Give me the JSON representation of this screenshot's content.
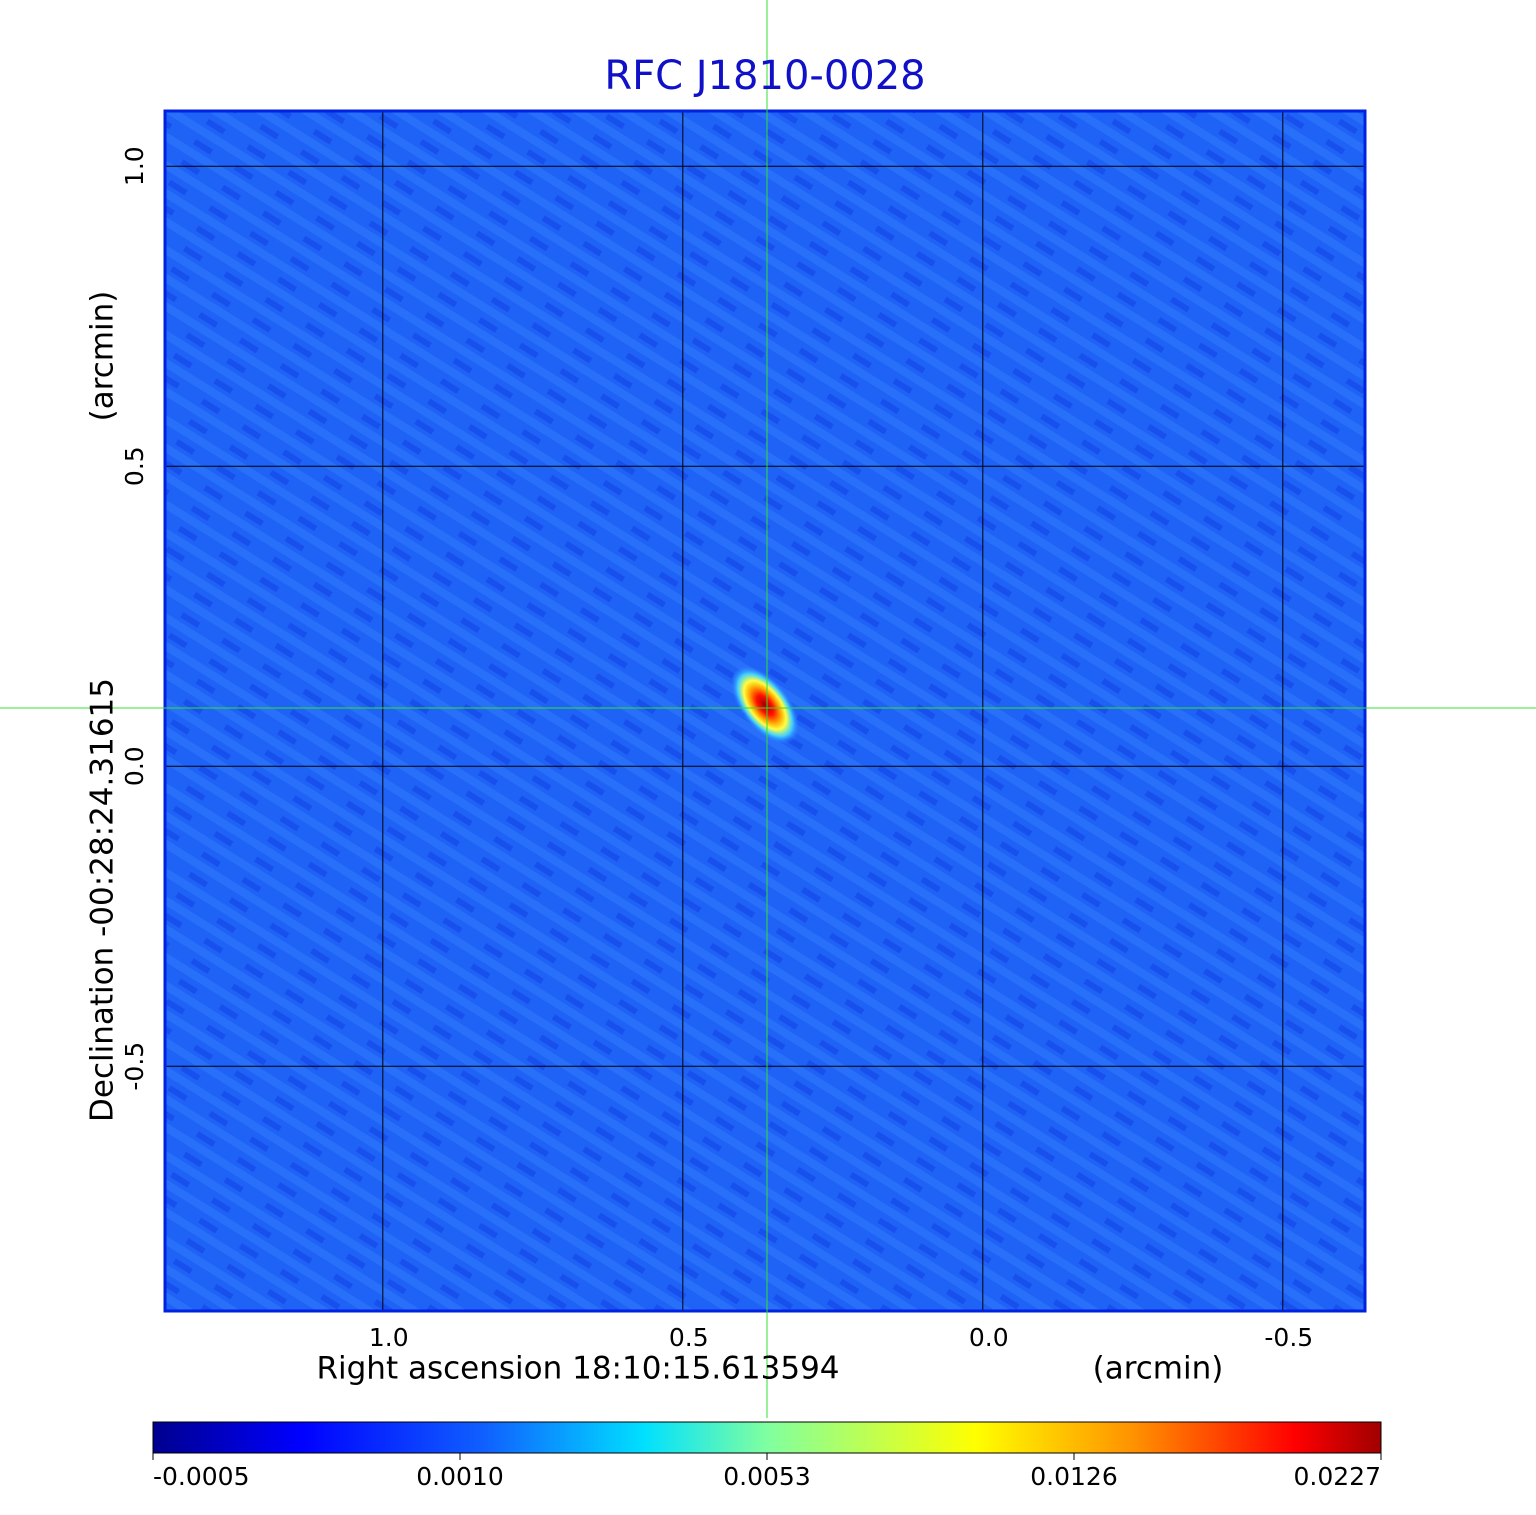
{
  "chart_data": {
    "type": "image",
    "title": "RFC J1810-0028",
    "x_label": "Right ascension  18:10:15.613594",
    "x_unit": "(arcmin)",
    "y_label": "Declination  -00:28:24.31615",
    "y_unit": "(arcmin)",
    "xlim": [
      1.363,
      -0.637
    ],
    "ylim": [
      -0.908,
      1.092
    ],
    "xticks": [
      {
        "value": 1,
        "label": "1.0"
      },
      {
        "value": 0.5,
        "label": "0.5"
      },
      {
        "value": 0,
        "label": "0.0"
      },
      {
        "value": -0.5,
        "label": "-0.5"
      }
    ],
    "yticks": [
      {
        "value": 1,
        "label": "1.0"
      },
      {
        "value": 0.5,
        "label": "0.5"
      },
      {
        "value": 0,
        "label": "0.0"
      },
      {
        "value": -0.5,
        "label": "-0.5"
      }
    ],
    "grid": true,
    "source": {
      "x": 0.363,
      "y": 0.102,
      "value": 0.0227
    },
    "colorbar_ticks": [
      {
        "value": -0.0005,
        "label": "-0.0005"
      },
      {
        "value": 0.001,
        "label": "0.0010"
      },
      {
        "value": 0.0053,
        "label": "0.0053"
      },
      {
        "value": 0.0126,
        "label": "0.0126"
      },
      {
        "value": 0.0227,
        "label": "0.0227"
      }
    ]
  }
}
